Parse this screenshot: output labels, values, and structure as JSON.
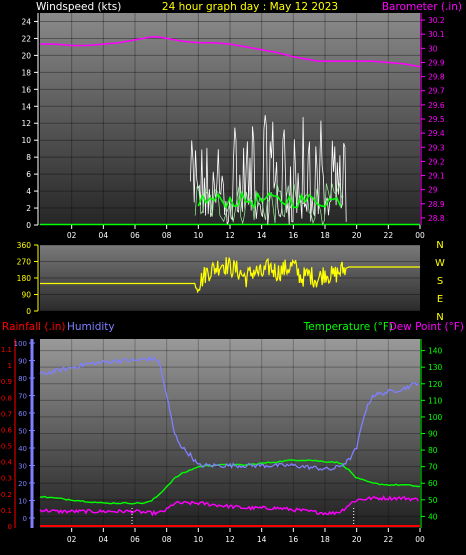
{
  "header": {
    "windspeed_label": "Windspeed (kts)",
    "title": "24 hour graph day : May 12 2023",
    "barometer_label": "Barometer (.in)"
  },
  "colors": {
    "white": "#ffffff",
    "yellow": "#ffff00",
    "magenta": "#ff00ff",
    "lime": "#00ff00",
    "red": "#ff0000",
    "periwinkle": "#7f7fff",
    "lightgreen": "#a0f0a0",
    "background": "#000000"
  },
  "chart_data": [
    {
      "id": "wind-baro",
      "type": "line",
      "title": "24 hour graph day : May 12 2023",
      "xlabel": "",
      "x_ticks": [
        "02",
        "04",
        "06",
        "08",
        "10",
        "12",
        "14",
        "16",
        "18",
        "20",
        "22",
        "00"
      ],
      "y_left_label": "Windspeed (kts)",
      "y_left_ticks": [
        0,
        2,
        4,
        6,
        8,
        10,
        12,
        14,
        16,
        18,
        20,
        22,
        24
      ],
      "y_left_range": [
        0,
        25
      ],
      "y_right_label": "Barometer (.in)",
      "y_right_ticks": [
        28.8,
        28.9,
        29,
        29.1,
        29.2,
        29.3,
        29.4,
        29.5,
        29.6,
        29.7,
        29.8,
        29.9,
        30,
        30.1,
        30.2
      ],
      "y_right_range": [
        28.75,
        30.25
      ],
      "series": [
        {
          "name": "Barometer",
          "axis": "right",
          "x": [
            0,
            1,
            2,
            3,
            4,
            5,
            6,
            7,
            7.5,
            8,
            9,
            10,
            11,
            12,
            13,
            14,
            15,
            16,
            17,
            17.5,
            18,
            19,
            20,
            21,
            22,
            23,
            24
          ],
          "values": [
            30.03,
            30.03,
            30.02,
            30.02,
            30.03,
            30.04,
            30.06,
            30.08,
            30.08,
            30.07,
            30.05,
            30.04,
            30.04,
            30.03,
            30.01,
            29.99,
            29.97,
            29.94,
            29.92,
            29.91,
            29.91,
            29.91,
            29.91,
            29.91,
            29.9,
            29.89,
            29.87
          ]
        }
      ],
      "wind": {
        "gust_x": [
          9.5,
          24
        ],
        "gust_range": [
          0,
          13
        ],
        "avg_x": [
          9.8,
          19.2
        ],
        "avg_range": [
          0,
          2
        ]
      }
    },
    {
      "id": "wind-direction",
      "type": "line",
      "y_left_ticks": [
        0,
        90,
        180,
        270,
        360
      ],
      "y_left_range": [
        0,
        360
      ],
      "y_right_ticks": [
        "N",
        "W",
        "S",
        "E",
        "N"
      ],
      "series": [
        {
          "name": "Wind direction",
          "x": [
            0,
            10,
            10.2,
            10.5,
            11,
            11.5,
            12,
            12.5,
            13,
            13.5,
            14,
            14.5,
            15,
            15.5,
            16,
            16.5,
            17,
            17.5,
            18,
            18.5,
            19,
            19.5,
            20,
            21,
            22,
            23,
            24
          ],
          "values": [
            150,
            150,
            170,
            210,
            230,
            260,
            240,
            220,
            180,
            220,
            200,
            240,
            210,
            230,
            250,
            180,
            200,
            170,
            210,
            190,
            220,
            240,
            240,
            240,
            240,
            240,
            240
          ]
        }
      ]
    },
    {
      "id": "humidity-temperature",
      "type": "line",
      "header": {
        "rainfall_label": "Rainfall (.in)",
        "humidity_label": "Humidity",
        "temperature_label": "Temperature (°F)",
        "dewpoint_label": "Dew Point (°F)"
      },
      "x_ticks": [
        "02",
        "04",
        "06",
        "08",
        "10",
        "12",
        "14",
        "16",
        "18",
        "20",
        "22",
        "00"
      ],
      "y_rain_ticks": [
        0,
        0.1,
        0.2,
        0.3,
        0.4,
        0.5,
        0.6,
        0.7,
        0.8,
        0.9,
        1,
        1.1
      ],
      "y_humidity_ticks": [
        0,
        10,
        20,
        30,
        40,
        50,
        60,
        70,
        80,
        90,
        100
      ],
      "y_temp_ticks": [
        40,
        50,
        60,
        70,
        80,
        90,
        100,
        110,
        120,
        130,
        140
      ],
      "y_temp_range": [
        33,
        147
      ],
      "series": [
        {
          "name": "Humidity",
          "axis": "humidity",
          "x": [
            0,
            1,
            2,
            3,
            4,
            5,
            6,
            7,
            7.5,
            8,
            8.5,
            9,
            9.5,
            10,
            11,
            12,
            13,
            14,
            15,
            16,
            17,
            18,
            18.5,
            19,
            19.5,
            20,
            20.5,
            21,
            22,
            23,
            24
          ],
          "values": [
            82,
            84,
            86,
            88,
            89,
            90,
            90,
            91,
            90,
            70,
            48,
            40,
            36,
            30,
            30,
            30,
            30,
            30,
            30,
            30,
            29,
            28,
            28,
            30,
            33,
            40,
            60,
            70,
            72,
            74,
            78
          ]
        },
        {
          "name": "Temperature",
          "axis": "temp",
          "x": [
            0,
            1,
            2,
            3,
            4,
            5,
            6,
            6.5,
            7,
            7.5,
            8,
            8.5,
            9,
            9.5,
            10,
            11,
            12,
            13,
            14,
            15,
            16,
            17,
            18,
            18.5,
            19,
            19.5,
            20,
            21,
            22,
            23,
            24
          ],
          "values": [
            52,
            51,
            50,
            49,
            48,
            48,
            48,
            48,
            49,
            53,
            58,
            63,
            66,
            68,
            70,
            71,
            71,
            71,
            72,
            73,
            74,
            74,
            73,
            73,
            72,
            68,
            63,
            60,
            59,
            59,
            58
          ]
        },
        {
          "name": "Dew Point",
          "axis": "temp",
          "x": [
            0,
            1,
            2,
            3,
            4,
            5,
            6,
            7,
            7.5,
            8,
            8.5,
            9,
            10,
            11,
            12,
            13,
            14,
            15,
            16,
            17,
            18,
            18.5,
            19,
            19.5,
            20,
            21,
            22,
            23,
            24
          ],
          "values": [
            44,
            43,
            43,
            43,
            43,
            43,
            43,
            42,
            42,
            44,
            48,
            48,
            48,
            47,
            46,
            45,
            45,
            45,
            44,
            43,
            42,
            42,
            43,
            47,
            50,
            51,
            51,
            51,
            50
          ]
        },
        {
          "name": "Rainfall",
          "axis": "rain",
          "x": [
            0,
            24
          ],
          "values": [
            0,
            0
          ]
        }
      ]
    }
  ]
}
